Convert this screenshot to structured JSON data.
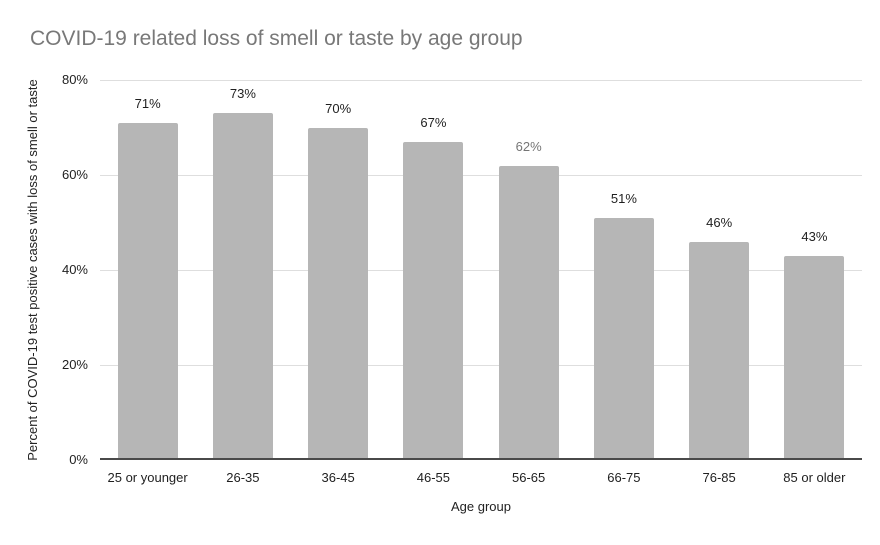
{
  "chart_data": {
    "type": "bar",
    "title": "COVID-19 related loss of smell or taste by age group",
    "xlabel": "Age group",
    "ylabel": "Percent of COVID-19 test positive cases with loss of smell or taste",
    "categories": [
      "25 or younger",
      "26-35",
      "36-45",
      "46-55",
      "56-65",
      "66-75",
      "76-85",
      "85 or older"
    ],
    "values": [
      71,
      73,
      70,
      67,
      62,
      51,
      46,
      43
    ],
    "data_labels": [
      "71%",
      "73%",
      "70%",
      "67%",
      "62%",
      "51%",
      "46%",
      "43%"
    ],
    "data_label_colors": [
      "#1f1f1f",
      "#1f1f1f",
      "#1f1f1f",
      "#1f1f1f",
      "#757575",
      "#1f1f1f",
      "#1f1f1f",
      "#1f1f1f"
    ],
    "ylim": [
      0,
      80
    ],
    "ytick_values": [
      0,
      20,
      40,
      60,
      80
    ],
    "ytick_labels": [
      "0%",
      "20%",
      "40%",
      "60%",
      "80%"
    ],
    "grid": true,
    "legend": "none",
    "colors": {
      "bar": "#b6b6b6",
      "gridline": "#dedede",
      "axis_line": "#4a4a4a",
      "title": "#787878",
      "tick_label": "#1f1f1f",
      "axis_title": "#222222",
      "background": "#ffffff"
    }
  }
}
